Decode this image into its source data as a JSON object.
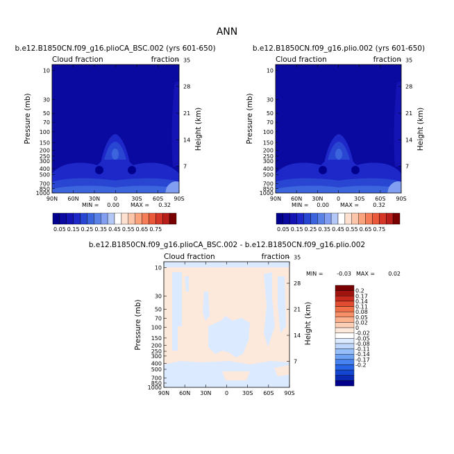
{
  "figure_title": "ANN",
  "stat_labels": {
    "min": "MIN =",
    "max": "MAX ="
  },
  "colors": {
    "abs_levels": [
      "#00008c",
      "#0a0aa0",
      "#1414b4",
      "#1e28c8",
      "#2846d2",
      "#3c64dc",
      "#5a82e6",
      "#829ef0",
      "#b4c8f8",
      "#ffffff",
      "#fde0d0",
      "#fcc4a8",
      "#fba37c",
      "#f57e58",
      "#ea5a3a",
      "#d43628",
      "#b81f1a",
      "#7a0000"
    ],
    "diff_levels": [
      "#00008c",
      "#0a2ab4",
      "#1446d2",
      "#2864e6",
      "#4682f0",
      "#6ea2f5",
      "#96bef8",
      "#bed6fb",
      "#dceaff",
      "#ffffff",
      "#fde8dc",
      "#fccfb6",
      "#fbb08e",
      "#f79068",
      "#f07048",
      "#e04c30",
      "#c62a1e",
      "#a01410",
      "#780000"
    ]
  },
  "chart_data": [
    {
      "type": "heatmap",
      "panel": "top-left",
      "title": "b.e12.B1850CN.f09_g16.plioCA_BSC.002 (yrs 601-650)",
      "left_subtitle": "Cloud fraction",
      "right_subtitle": "fraction",
      "ylabel": "Pressure (mb)",
      "ylabel_right": "Height (km)",
      "x_ticks": [
        "90N",
        "60N",
        "30N",
        "0",
        "30S",
        "60S",
        "90S"
      ],
      "x_values": [
        90,
        60,
        30,
        0,
        -30,
        -60,
        -90
      ],
      "y_ticks": [
        "10",
        "30",
        "50",
        "70",
        "100",
        "150",
        "200",
        "250",
        "300",
        "400",
        "500",
        "700",
        "850",
        "1000"
      ],
      "y_values": [
        10,
        30,
        50,
        70,
        100,
        150,
        200,
        250,
        300,
        400,
        500,
        700,
        850,
        1000
      ],
      "y2_ticks": [
        "35",
        "28",
        "21",
        "14",
        "7"
      ],
      "y2_values": [
        35,
        28,
        21,
        14,
        7
      ],
      "min_value": "0.00",
      "max_value": "0.32",
      "colorbar_labels": [
        "0.05",
        "0.15",
        "0.25",
        "0.35",
        "0.45",
        "0.55",
        "0.65",
        "0.75"
      ],
      "colorbar_levels": [
        0.05,
        0.1,
        0.15,
        0.2,
        0.25,
        0.3,
        0.35,
        0.4,
        0.45,
        0.5,
        0.55,
        0.6,
        0.65,
        0.7,
        0.75
      ]
    },
    {
      "type": "heatmap",
      "panel": "top-right",
      "title": "b.e12.B1850CN.f09_g16.plio.002 (yrs 601-650)",
      "left_subtitle": "Cloud fraction",
      "right_subtitle": "fraction",
      "ylabel": "Pressure (mb)",
      "ylabel_right": "Height (km)",
      "x_ticks": [
        "90N",
        "60N",
        "30N",
        "0",
        "30S",
        "60S",
        "90S"
      ],
      "x_values": [
        90,
        60,
        30,
        0,
        -30,
        -60,
        -90
      ],
      "y_ticks": [
        "10",
        "30",
        "50",
        "70",
        "100",
        "150",
        "200",
        "250",
        "300",
        "400",
        "500",
        "700",
        "850",
        "1000"
      ],
      "y_values": [
        10,
        30,
        50,
        70,
        100,
        150,
        200,
        250,
        300,
        400,
        500,
        700,
        850,
        1000
      ],
      "y2_ticks": [
        "35",
        "28",
        "21",
        "14",
        "7"
      ],
      "y2_values": [
        35,
        28,
        21,
        14,
        7
      ],
      "min_value": "0.00",
      "max_value": "0.32",
      "colorbar_labels": [
        "0.05",
        "0.15",
        "0.25",
        "0.35",
        "0.45",
        "0.55",
        "0.65",
        "0.75"
      ],
      "colorbar_levels": [
        0.05,
        0.1,
        0.15,
        0.2,
        0.25,
        0.3,
        0.35,
        0.4,
        0.45,
        0.5,
        0.55,
        0.6,
        0.65,
        0.7,
        0.75
      ]
    },
    {
      "type": "heatmap",
      "panel": "bottom",
      "title": "b.e12.B1850CN.f09_g16.plioCA_BSC.002 - b.e12.B1850CN.f09_g16.plio.002",
      "left_subtitle": "Cloud fraction",
      "right_subtitle": "fraction",
      "ylabel": "Pressure (mb)",
      "ylabel_right": "Height (km)",
      "x_ticks": [
        "90N",
        "60N",
        "30N",
        "0",
        "30S",
        "60S",
        "90S"
      ],
      "x_values": [
        90,
        60,
        30,
        0,
        -30,
        -60,
        -90
      ],
      "y_ticks": [
        "10",
        "30",
        "50",
        "70",
        "100",
        "150",
        "200",
        "250",
        "300",
        "400",
        "500",
        "700",
        "850",
        "1000"
      ],
      "y_values": [
        10,
        30,
        50,
        70,
        100,
        150,
        200,
        250,
        300,
        400,
        500,
        700,
        850,
        1000
      ],
      "y2_ticks": [
        "35",
        "28",
        "21",
        "14",
        "7"
      ],
      "y2_values": [
        35,
        28,
        21,
        14,
        7
      ],
      "min_value": "-0.03",
      "max_value": "0.02",
      "colorbar_labels": [
        "0.2",
        "0.17",
        "0.14",
        "0.11",
        "0.08",
        "0.05",
        "0.02",
        "0",
        "-0.02",
        "-0.05",
        "-0.08",
        "-0.11",
        "-0.14",
        "-0.17",
        "-0.2"
      ],
      "colorbar_levels": [
        0.2,
        0.17,
        0.14,
        0.11,
        0.08,
        0.05,
        0.02,
        0,
        -0.02,
        -0.05,
        -0.08,
        -0.11,
        -0.14,
        -0.17,
        -0.2
      ]
    }
  ]
}
